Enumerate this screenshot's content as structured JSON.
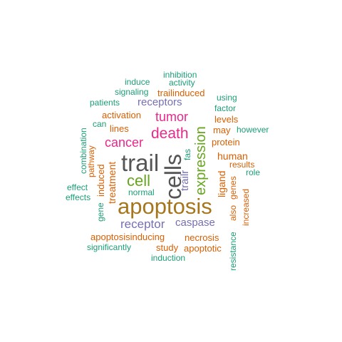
{
  "palette": {
    "teal": "#1b9e77",
    "orange": "#d95f02",
    "purple": "#7570b3",
    "magenta": "#e7298a",
    "green": "#66a61e",
    "brown": "#a6761d",
    "gray": "#555555"
  },
  "words": [
    {
      "text": "apoptosis",
      "color": "brown"
    },
    {
      "text": "cells",
      "color": "gray"
    },
    {
      "text": "trail",
      "color": "gray"
    },
    {
      "text": "expression",
      "color": "green"
    },
    {
      "text": "death",
      "color": "magenta"
    },
    {
      "text": "cell",
      "color": "green"
    },
    {
      "text": "cancer",
      "color": "magenta"
    },
    {
      "text": "tumor",
      "color": "magenta"
    },
    {
      "text": "receptor",
      "color": "purple"
    },
    {
      "text": "receptors",
      "color": "purple"
    },
    {
      "text": "caspase",
      "color": "purple"
    },
    {
      "text": "human",
      "color": "orange"
    },
    {
      "text": "trailr",
      "color": "purple"
    },
    {
      "text": "activation",
      "color": "orange"
    },
    {
      "text": "ligand",
      "color": "orange"
    },
    {
      "text": "treatment",
      "color": "orange"
    },
    {
      "text": "protein",
      "color": "orange"
    },
    {
      "text": "necrosis",
      "color": "orange"
    },
    {
      "text": "apoptosisinducing",
      "color": "orange"
    },
    {
      "text": "induced",
      "color": "orange"
    },
    {
      "text": "genes",
      "color": "orange"
    },
    {
      "text": "increased",
      "color": "orange"
    },
    {
      "text": "apoptotic",
      "color": "orange"
    },
    {
      "text": "lines",
      "color": "orange"
    },
    {
      "text": "levels",
      "color": "orange"
    },
    {
      "text": "may",
      "color": "orange"
    },
    {
      "text": "results",
      "color": "orange"
    },
    {
      "text": "also",
      "color": "orange"
    },
    {
      "text": "study",
      "color": "orange"
    },
    {
      "text": "trailinduced",
      "color": "orange"
    },
    {
      "text": "pathway",
      "color": "orange"
    },
    {
      "text": "fas",
      "color": "teal"
    },
    {
      "text": "normal",
      "color": "teal"
    },
    {
      "text": "role",
      "color": "teal"
    },
    {
      "text": "factor",
      "color": "teal"
    },
    {
      "text": "however",
      "color": "teal"
    },
    {
      "text": "using",
      "color": "teal"
    },
    {
      "text": "can",
      "color": "teal"
    },
    {
      "text": "combination",
      "color": "teal"
    },
    {
      "text": "gene",
      "color": "teal"
    },
    {
      "text": "effect",
      "color": "teal"
    },
    {
      "text": "effects",
      "color": "teal"
    },
    {
      "text": "significantly",
      "color": "teal"
    },
    {
      "text": "induction",
      "color": "teal"
    },
    {
      "text": "resistance",
      "color": "teal"
    },
    {
      "text": "patients",
      "color": "teal"
    },
    {
      "text": "signaling",
      "color": "teal"
    },
    {
      "text": "induce",
      "color": "teal"
    },
    {
      "text": "activity",
      "color": "teal"
    },
    {
      "text": "inhibition",
      "color": "teal"
    }
  ]
}
